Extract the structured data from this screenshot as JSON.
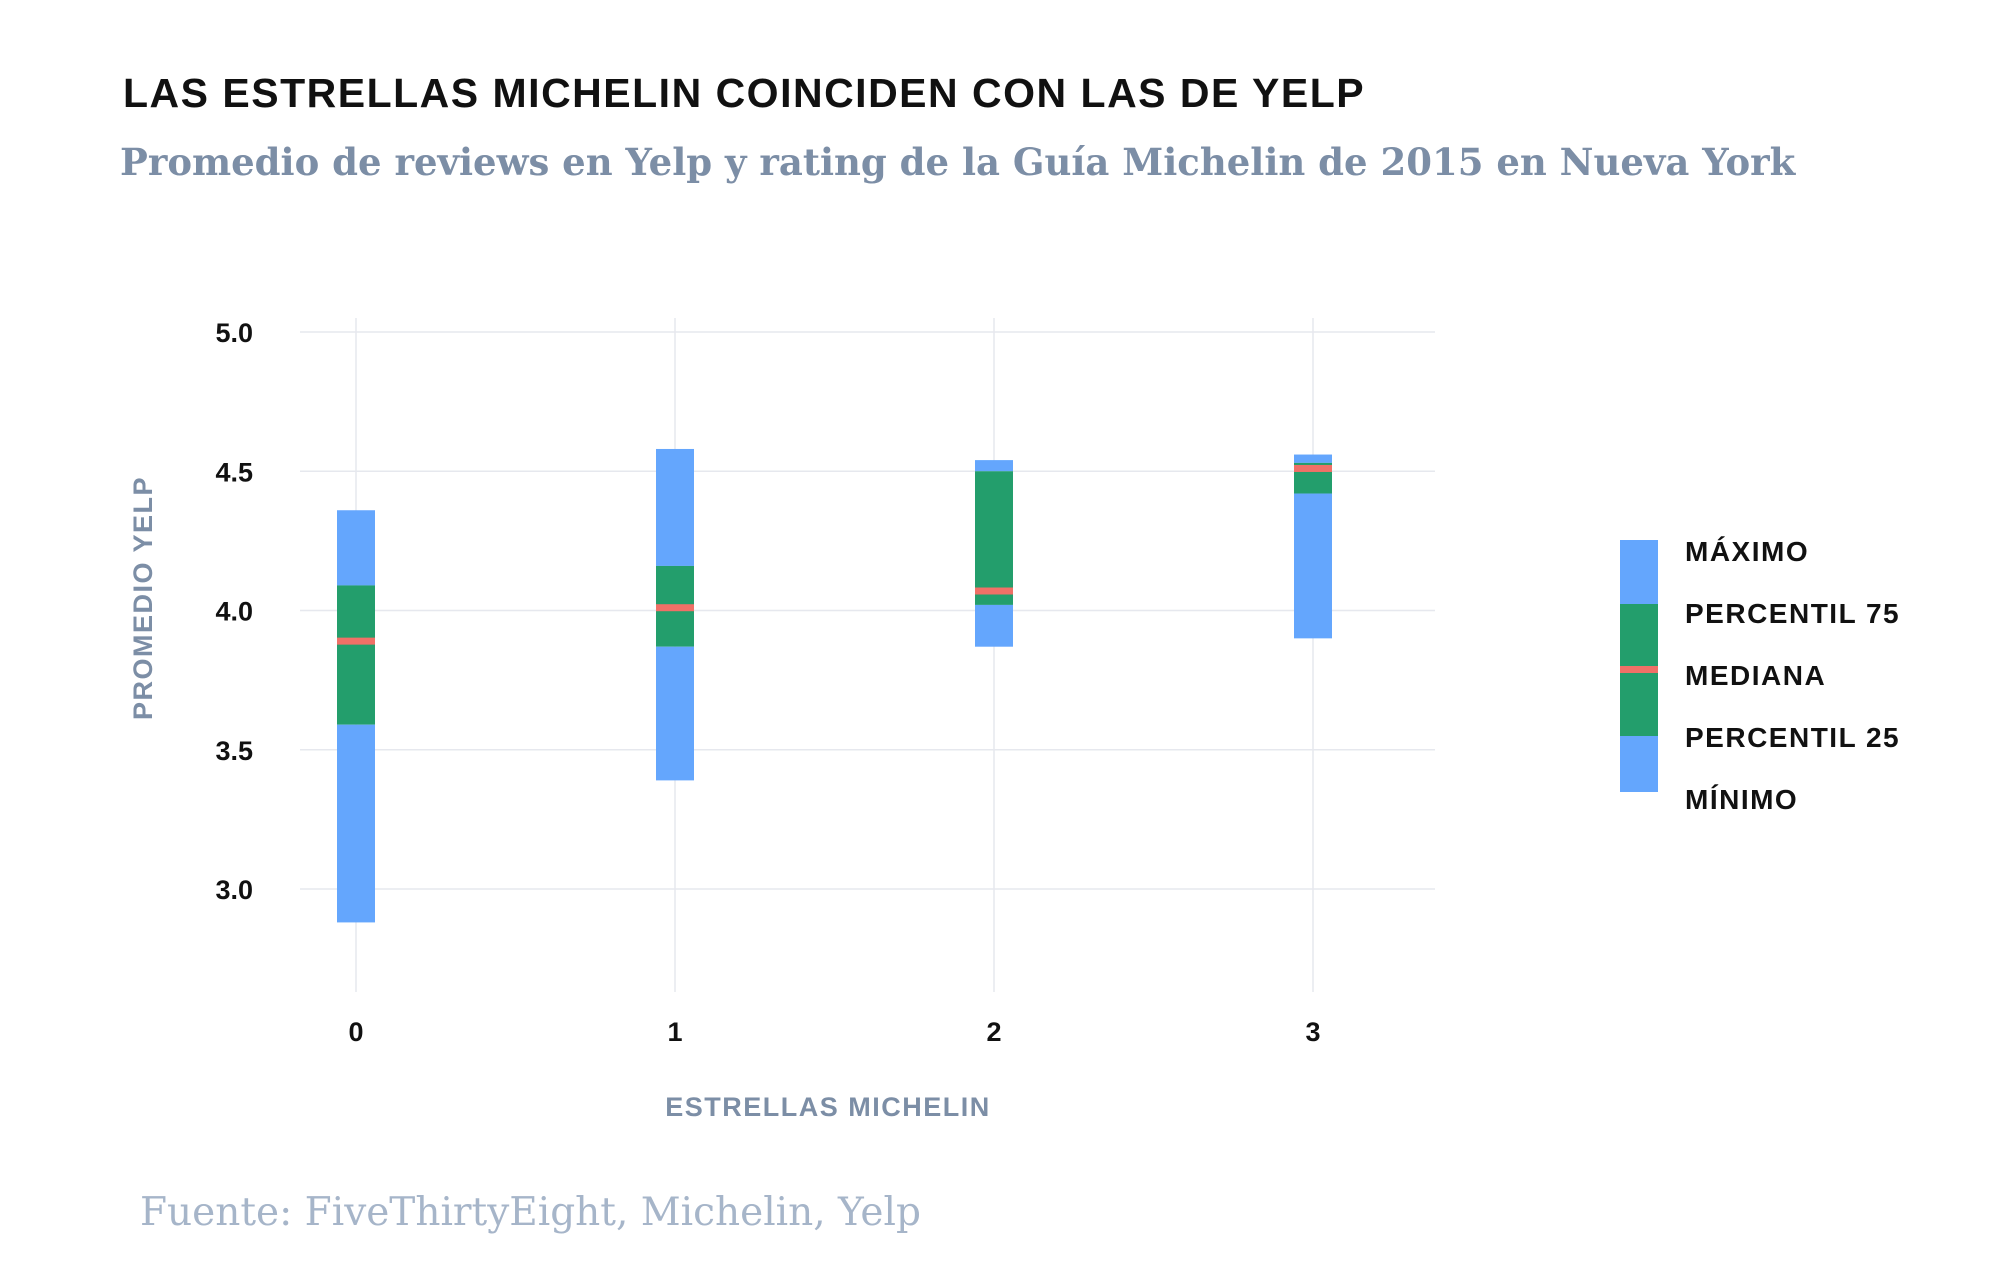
{
  "title": "LAS ESTRELLAS MICHELIN COINCIDEN CON LAS DE YELP",
  "subtitle": "Promedio de reviews en Yelp y rating de la Guía Michelin de 2015 en Nueva York",
  "source": "Fuente: FiveThirtyEight, Michelin, Yelp",
  "colors": {
    "outer": "#64a6fd",
    "inner": "#239e6c",
    "median": "#f07067",
    "grid": "#e6e8ee",
    "axis_title": "#7c8ea6"
  },
  "chart_data": {
    "type": "boxplot",
    "xlabel": "ESTRELLAS MICHELIN",
    "ylabel": "PROMEDIO YELP",
    "ylim": [
      2.6,
      5.05
    ],
    "y_ticks": [
      "5.0",
      "4.5",
      "4.0",
      "3.5",
      "3.0"
    ],
    "y_tick_values": [
      5.0,
      4.5,
      4.0,
      3.5,
      3.0
    ],
    "categories": [
      "0",
      "1",
      "2",
      "3"
    ],
    "series": [
      {
        "category": "0",
        "min": 2.88,
        "p25": 3.59,
        "median": 3.89,
        "p75": 4.09,
        "max": 4.36
      },
      {
        "category": "1",
        "min": 3.39,
        "p25": 3.87,
        "median": 4.01,
        "p75": 4.16,
        "max": 4.58
      },
      {
        "category": "2",
        "min": 3.87,
        "p25": 4.02,
        "median": 4.07,
        "p75": 4.5,
        "max": 4.54
      },
      {
        "category": "3",
        "min": 3.9,
        "p25": 4.42,
        "median": 4.51,
        "p75": 4.53,
        "max": 4.56
      }
    ],
    "legend": [
      "MÁXIMO",
      "PERCENTIL 75",
      "MEDIANA",
      "PERCENTIL 25",
      "MÍNIMO"
    ],
    "legend_position": "right",
    "grid": true
  }
}
